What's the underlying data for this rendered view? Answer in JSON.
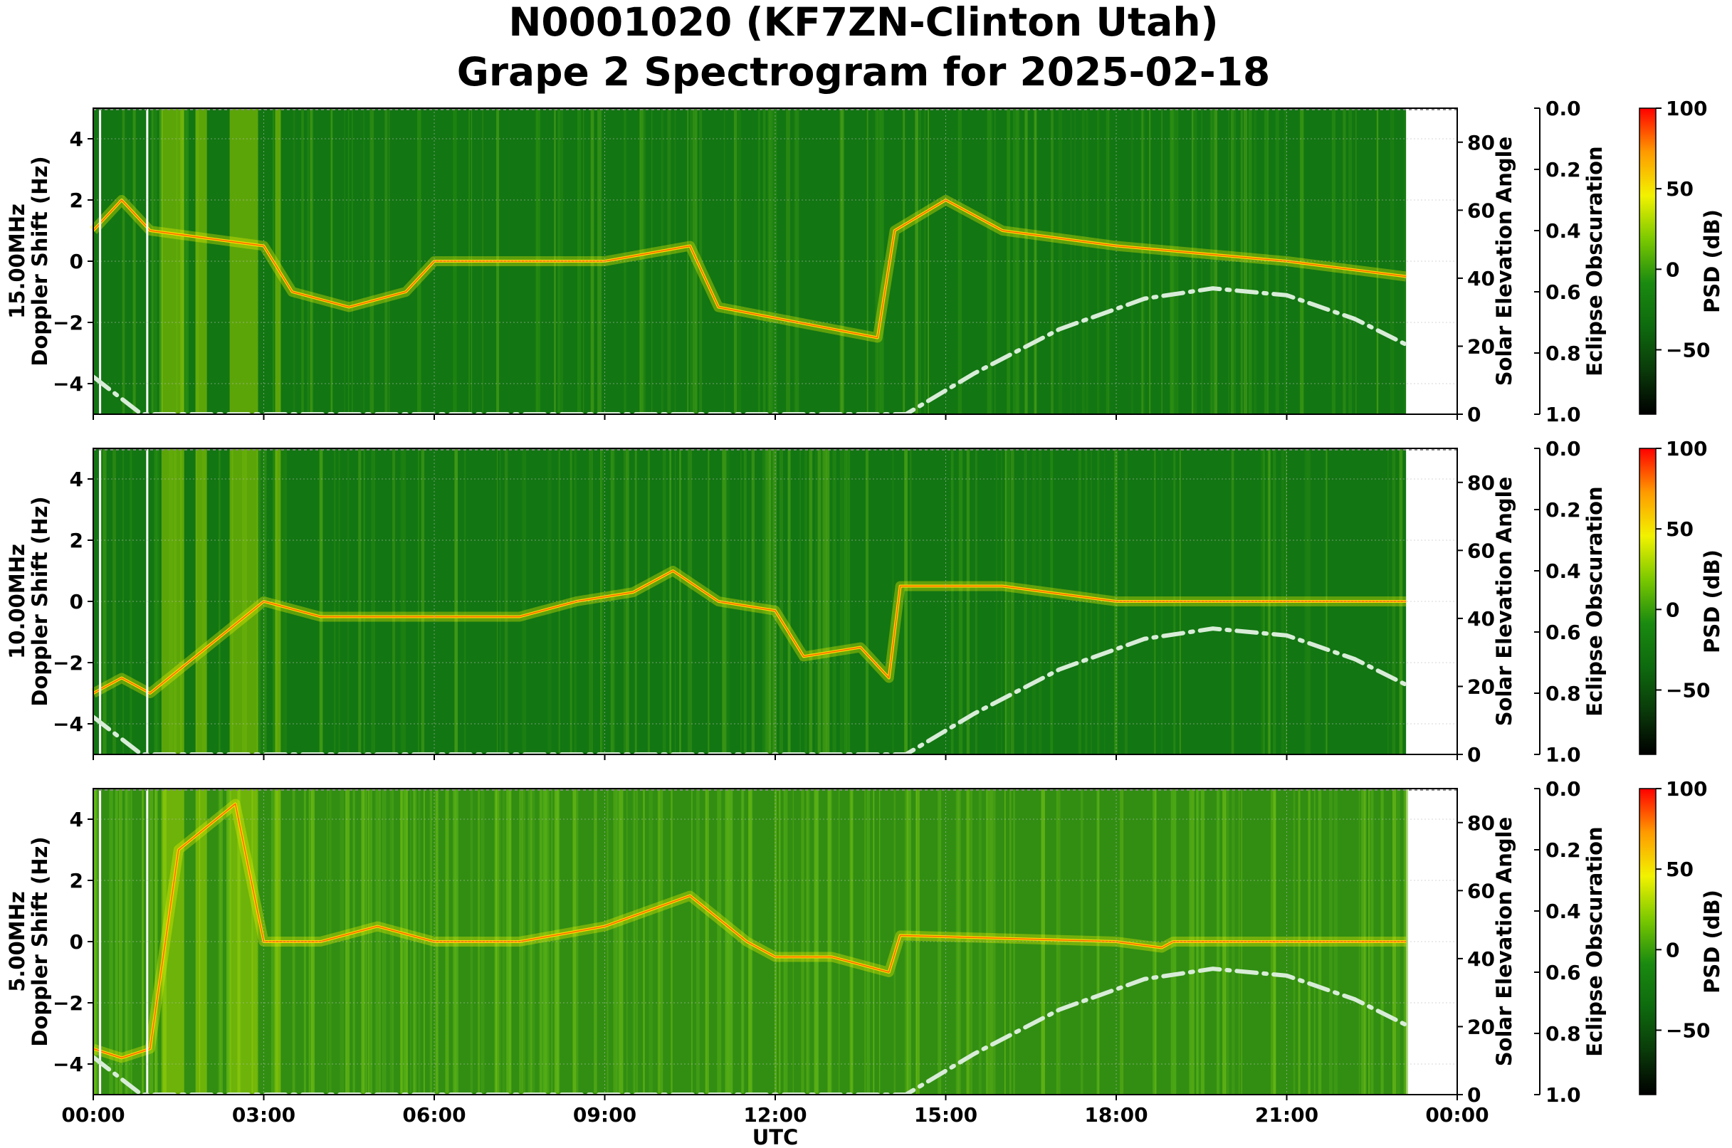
{
  "title": {
    "line1": "N0001020 (KF7ZN-Clinton Utah)",
    "line2": "Grape 2 Spectrogram for 2025-02-18"
  },
  "colors": {
    "background": "#ffffff",
    "colormap": [
      "#000000",
      "#0a3a0a",
      "#0e6a0e",
      "#1a8a10",
      "#7ac800",
      "#f2f200",
      "#ff9a00",
      "#ff0000"
    ],
    "solar_curve": "#d8ecd8",
    "band_green": "#127612"
  },
  "chart_data": [
    {
      "type": "heatmap",
      "panel_label": "15.00MHz",
      "ylabel": "Doppler Shift (Hz)",
      "ylim": [
        -5,
        5
      ],
      "yticks": [
        -4,
        -2,
        0,
        2,
        4
      ],
      "xlim": [
        "00:00",
        "24:00"
      ],
      "xticks": [
        "00:00",
        "03:00",
        "06:00",
        "09:00",
        "12:00",
        "15:00",
        "18:00",
        "21:00",
        "00:00"
      ],
      "xlabel": "",
      "data_end_hour": 23.1,
      "dominant_trace": [
        [
          0.0,
          1.0
        ],
        [
          0.5,
          2.0
        ],
        [
          1.0,
          1.0
        ],
        [
          3.0,
          0.5
        ],
        [
          3.5,
          -1.0
        ],
        [
          4.5,
          -1.5
        ],
        [
          5.5,
          -1.0
        ],
        [
          6.0,
          0.0
        ],
        [
          7.5,
          0.0
        ],
        [
          9.0,
          0.0
        ],
        [
          10.5,
          0.5
        ],
        [
          11.0,
          -1.5
        ],
        [
          13.8,
          -2.5
        ],
        [
          14.1,
          1.0
        ],
        [
          15.0,
          2.0
        ],
        [
          16.0,
          1.0
        ],
        [
          18.0,
          0.5
        ],
        [
          21.0,
          0.0
        ],
        [
          23.1,
          -0.5
        ]
      ],
      "right_axis": {
        "label": "Solar Elevation Angle",
        "ticks": [
          0,
          20,
          40,
          60,
          80
        ],
        "range": [
          0,
          90
        ]
      },
      "eclipse_axis": {
        "label": "Eclipse Obscuration",
        "ticks": [
          "0.0",
          "0.2",
          "0.4",
          "0.6",
          "0.8",
          "1.0"
        ]
      },
      "colorbar": {
        "label": "PSD (dB)",
        "ticks": [
          100,
          50,
          0,
          -50
        ],
        "range": [
          -90,
          100
        ]
      }
    },
    {
      "type": "heatmap",
      "panel_label": "10.00MHz",
      "ylabel": "Doppler Shift (Hz)",
      "ylim": [
        -5,
        5
      ],
      "yticks": [
        -4,
        -2,
        0,
        2,
        4
      ],
      "xlim": [
        "00:00",
        "24:00"
      ],
      "xticks": [
        "00:00",
        "03:00",
        "06:00",
        "09:00",
        "12:00",
        "15:00",
        "18:00",
        "21:00",
        "00:00"
      ],
      "xlabel": "",
      "data_end_hour": 23.1,
      "dominant_trace": [
        [
          0.0,
          -3.0
        ],
        [
          0.5,
          -2.5
        ],
        [
          1.0,
          -3.0
        ],
        [
          3.0,
          0.0
        ],
        [
          4.0,
          -0.5
        ],
        [
          5.5,
          -0.5
        ],
        [
          7.5,
          -0.5
        ],
        [
          8.5,
          0.0
        ],
        [
          9.5,
          0.3
        ],
        [
          10.2,
          1.0
        ],
        [
          11.0,
          0.0
        ],
        [
          12.0,
          -0.3
        ],
        [
          12.5,
          -1.8
        ],
        [
          13.5,
          -1.5
        ],
        [
          14.0,
          -2.5
        ],
        [
          14.2,
          0.5
        ],
        [
          16.0,
          0.5
        ],
        [
          18.0,
          0.0
        ],
        [
          20.0,
          0.0
        ],
        [
          23.1,
          0.0
        ]
      ],
      "right_axis": {
        "label": "Solar Elevation Angle",
        "ticks": [
          0,
          20,
          40,
          60,
          80
        ],
        "range": [
          0,
          90
        ]
      },
      "eclipse_axis": {
        "label": "Eclipse Obscuration",
        "ticks": [
          "0.0",
          "0.2",
          "0.4",
          "0.6",
          "0.8",
          "1.0"
        ]
      },
      "colorbar": {
        "label": "PSD (dB)",
        "ticks": [
          100,
          50,
          0,
          -50
        ],
        "range": [
          -90,
          100
        ]
      }
    },
    {
      "type": "heatmap",
      "panel_label": "5.00MHz",
      "ylabel": "Doppler Shift (Hz)",
      "ylim": [
        -5,
        5
      ],
      "yticks": [
        -4,
        -2,
        0,
        2,
        4
      ],
      "xlim": [
        "00:00",
        "24:00"
      ],
      "xticks": [
        "00:00",
        "03:00",
        "06:00",
        "09:00",
        "12:00",
        "15:00",
        "18:00",
        "21:00",
        "00:00"
      ],
      "xlabel": "UTC",
      "data_end_hour": 23.1,
      "dominant_trace": [
        [
          0.0,
          -3.5
        ],
        [
          0.5,
          -3.8
        ],
        [
          1.0,
          -3.5
        ],
        [
          1.5,
          3.0
        ],
        [
          2.5,
          4.5
        ],
        [
          3.0,
          0.0
        ],
        [
          4.0,
          0.0
        ],
        [
          5.0,
          0.5
        ],
        [
          6.0,
          0.0
        ],
        [
          7.5,
          0.0
        ],
        [
          9.0,
          0.5
        ],
        [
          10.5,
          1.5
        ],
        [
          11.5,
          0.0
        ],
        [
          12.0,
          -0.5
        ],
        [
          13.0,
          -0.5
        ],
        [
          14.0,
          -1.0
        ],
        [
          14.2,
          0.2
        ],
        [
          18.0,
          0.0
        ],
        [
          18.8,
          -0.2
        ],
        [
          19.0,
          0.0
        ],
        [
          23.1,
          0.0
        ]
      ],
      "right_axis": {
        "label": "Solar Elevation Angle",
        "ticks": [
          0,
          20,
          40,
          60,
          80
        ],
        "range": [
          0,
          90
        ]
      },
      "eclipse_axis": {
        "label": "Eclipse Obscuration",
        "ticks": [
          "0.0",
          "0.2",
          "0.4",
          "0.6",
          "0.8",
          "1.0"
        ]
      },
      "colorbar": {
        "label": "PSD (dB)",
        "ticks": [
          100,
          50,
          0,
          -50
        ],
        "range": [
          -90,
          100
        ]
      }
    }
  ],
  "solar_elevation": {
    "series": [
      [
        0.0,
        11.0
      ],
      [
        0.85,
        0.0
      ],
      [
        14.3,
        0.0
      ],
      [
        15.5,
        12.0
      ],
      [
        17.0,
        25.0
      ],
      [
        18.5,
        34.0
      ],
      [
        19.7,
        37.0
      ],
      [
        21.0,
        35.0
      ],
      [
        22.2,
        28.0
      ],
      [
        23.1,
        20.5
      ]
    ]
  }
}
